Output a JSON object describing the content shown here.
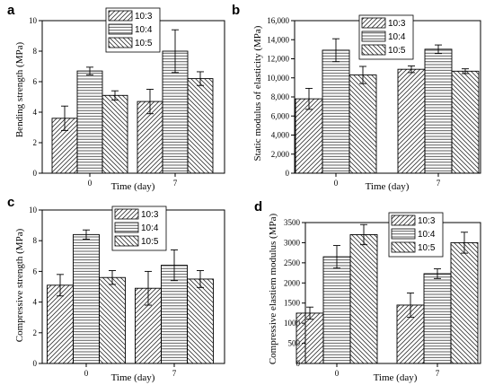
{
  "chart_data": [
    {
      "type": "bar",
      "letter": "a",
      "categories": [
        "0",
        "7"
      ],
      "xlabel": "Time (day)",
      "ylabel": "Bending strength (MPa)",
      "ylim": [
        0,
        10
      ],
      "yticks": [
        0,
        2,
        4,
        6,
        8,
        10
      ],
      "legend_position": "top-center",
      "series": [
        {
          "name": "10:3",
          "pattern": "diagonal",
          "values": [
            3.6,
            4.7
          ],
          "errors": [
            0.8,
            0.8
          ]
        },
        {
          "name": "10:4",
          "pattern": "horizontal",
          "values": [
            6.7,
            8.0
          ],
          "errors": [
            0.25,
            1.4
          ]
        },
        {
          "name": "10:5",
          "pattern": "backdiagonal",
          "values": [
            5.1,
            6.2
          ],
          "errors": [
            0.3,
            0.45
          ]
        }
      ]
    },
    {
      "type": "bar",
      "letter": "b",
      "categories": [
        "0",
        "7"
      ],
      "xlabel": "Time (day)",
      "ylabel": "Static modulus of elasticity (MPa)",
      "ylim": [
        0,
        16000
      ],
      "yticks": [
        0,
        2000,
        4000,
        6000,
        8000,
        10000,
        12000,
        14000,
        16000
      ],
      "yticklabels": [
        "0",
        "2,000",
        "4,000",
        "6,000",
        "8,000",
        "10,000",
        "12,000",
        "14,000",
        "16,000"
      ],
      "legend_position": "top-center",
      "series": [
        {
          "name": "10:3",
          "pattern": "diagonal",
          "values": [
            7800,
            10900
          ],
          "errors": [
            1100,
            350
          ]
        },
        {
          "name": "10:4",
          "pattern": "horizontal",
          "values": [
            12900,
            13000
          ],
          "errors": [
            1200,
            450
          ]
        },
        {
          "name": "10:5",
          "pattern": "backdiagonal",
          "values": [
            10300,
            10700
          ],
          "errors": [
            900,
            250
          ]
        }
      ]
    },
    {
      "type": "bar",
      "letter": "c",
      "categories": [
        "0",
        "7"
      ],
      "xlabel": "Time (day)",
      "ylabel": "Compressive strength (MPa)",
      "ylim": [
        0,
        10
      ],
      "yticks": [
        0,
        2,
        4,
        6,
        8,
        10
      ],
      "legend_position": "top-right",
      "series": [
        {
          "name": "10:3",
          "pattern": "diagonal",
          "values": [
            5.1,
            4.9
          ],
          "errors": [
            0.7,
            1.1
          ]
        },
        {
          "name": "10:4",
          "pattern": "horizontal",
          "values": [
            8.4,
            6.4
          ],
          "errors": [
            0.3,
            1.0
          ]
        },
        {
          "name": "10:5",
          "pattern": "backdiagonal",
          "values": [
            5.6,
            5.5
          ],
          "errors": [
            0.45,
            0.55
          ]
        }
      ]
    },
    {
      "type": "bar",
      "letter": "d",
      "categories": [
        "0",
        "7"
      ],
      "xlabel": "Time (day)",
      "ylabel": "Compressive elastiem modulus (MPa)",
      "ylim": [
        0,
        3500
      ],
      "yticks": [
        0,
        500,
        1000,
        1500,
        2000,
        2500,
        3000,
        3500
      ],
      "legend_position": "top-right",
      "series": [
        {
          "name": "10:3",
          "pattern": "diagonal",
          "values": [
            1250,
            1450
          ],
          "errors": [
            150,
            300
          ]
        },
        {
          "name": "10:4",
          "pattern": "horizontal",
          "values": [
            2650,
            2230
          ],
          "errors": [
            280,
            120
          ]
        },
        {
          "name": "10:5",
          "pattern": "backdiagonal",
          "values": [
            3200,
            3000
          ],
          "errors": [
            250,
            260
          ]
        }
      ]
    }
  ]
}
